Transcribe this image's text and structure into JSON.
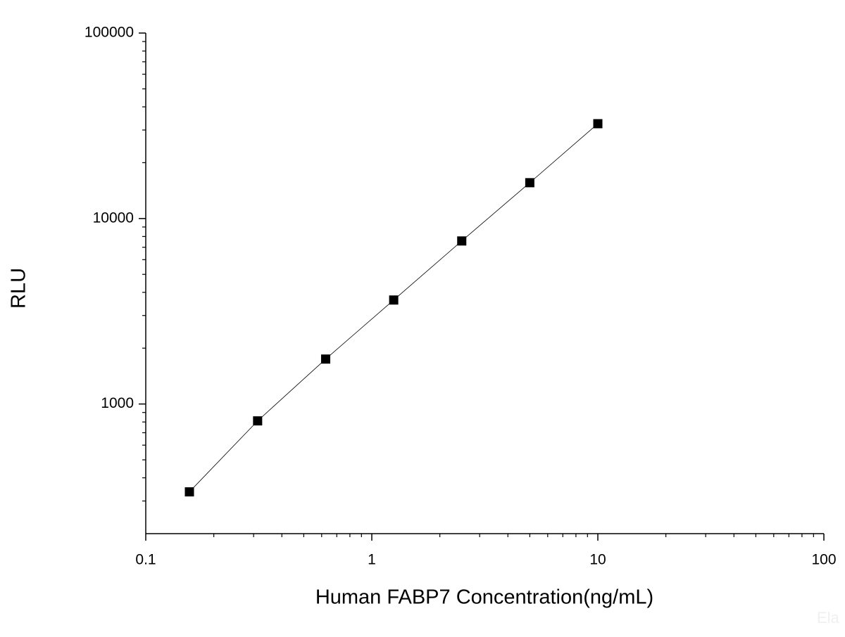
{
  "chart_data": {
    "type": "line",
    "log_x": true,
    "log_y": true,
    "x_label": "Human FABP7 Concentration(ng/mL)",
    "y_label": "RLU",
    "x": [
      0.156,
      0.3125,
      0.625,
      1.25,
      2.5,
      5,
      10
    ],
    "series": [
      {
        "color": "#000000",
        "values": [
          336,
          811,
          1747,
          3636,
          7568,
          15600,
          32450
        ]
      }
    ],
    "xlim": [
      0.1,
      100
    ],
    "ylim": [
      200,
      100000
    ],
    "xticks": [
      0.1,
      1,
      10,
      100
    ],
    "yticks": [
      1000,
      10000,
      100000
    ],
    "xminorticks": [
      0.2,
      0.3,
      0.4,
      0.5,
      0.6,
      0.7,
      0.8,
      0.9,
      2,
      3,
      4,
      5,
      6,
      7,
      8,
      9,
      20,
      30,
      40,
      50,
      60,
      70,
      80,
      90
    ],
    "yminorticks": [
      300,
      400,
      500,
      600,
      700,
      800,
      900,
      2000,
      3000,
      4000,
      5000,
      6000,
      7000,
      8000,
      9000,
      20000,
      30000,
      40000,
      50000,
      60000,
      70000,
      80000,
      90000
    ],
    "watermark": "Ela"
  }
}
